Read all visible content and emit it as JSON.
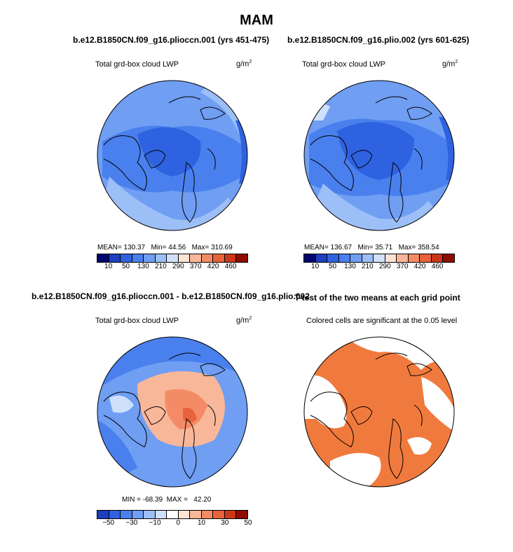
{
  "title": "MAM",
  "panels": [
    {
      "id": "p1",
      "heading": "b.e12.B1850CN.f09_g16.plioccn.001 (yrs 451-475)",
      "variable": "Total grd-box cloud LWP",
      "units": "g/m",
      "units_sup": "2",
      "stats": {
        "mean_label": "MEAN=",
        "mean": "130.37",
        "min_label": "Min=",
        "min": "44.56",
        "max_label": "Max=",
        "max": "310.69"
      }
    },
    {
      "id": "p2",
      "heading": "b.e12.B1850CN.f09_g16.plio.002 (yrs 601-625)",
      "variable": "Total grd-box cloud LWP",
      "units": "g/m",
      "units_sup": "2",
      "stats": {
        "mean_label": "MEAN=",
        "mean": "136.67",
        "min_label": "Min=",
        "min": "35.71",
        "max_label": "Max=",
        "max": "358.54"
      }
    },
    {
      "id": "p3",
      "heading": "b.e12.B1850CN.f09_g16.plioccn.001 - b.e12.B1850CN.f09_g16.plio.002",
      "variable": "Total grd-box cloud LWP",
      "units": "g/m",
      "units_sup": "2",
      "stats": {
        "min_label": "MIN =",
        "min": "-68.39",
        "max_label": "MAX =",
        "max": "42.20"
      }
    },
    {
      "id": "p4",
      "heading": "T-test of the two means at each grid point",
      "variable": "Colored cells are significant at the 0.05 level"
    }
  ],
  "colorbars": {
    "abs": {
      "colors": [
        "#02066f",
        "#1f3fbf",
        "#2f62e0",
        "#4a80ee",
        "#6f9ef3",
        "#9dbff7",
        "#cfe0fb",
        "#fde3d4",
        "#f9b79a",
        "#f38c66",
        "#e8623c",
        "#cc3619",
        "#8e0c00"
      ],
      "labels": [
        "10",
        "50",
        "130",
        "210",
        "290",
        "370",
        "420",
        "460"
      ]
    },
    "diff": {
      "colors": [
        "#1a3fbf",
        "#2f62e0",
        "#4a80ee",
        "#6f9ef3",
        "#9dbff7",
        "#cfe0fb",
        "#ffffff",
        "#fde3d4",
        "#f9b79a",
        "#f38c66",
        "#e8623c",
        "#cc3619",
        "#8e0c00"
      ],
      "labels": [
        "−50",
        "−30",
        "−10",
        "0",
        "10",
        "30",
        "50"
      ]
    }
  },
  "colors": {
    "significant": "#f07a3d",
    "coast": "#000000"
  }
}
